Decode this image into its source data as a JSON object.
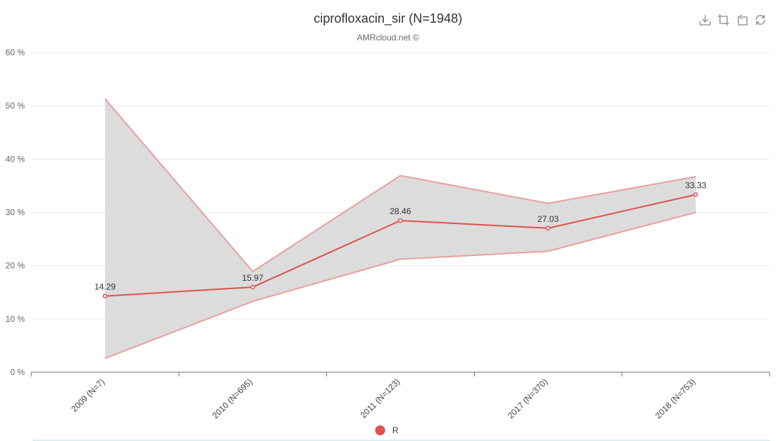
{
  "chart_data": {
    "type": "line",
    "title": "ciprofloxacin_sir (N=1948)",
    "subtitle": "AMRcloud.net ©",
    "categories": [
      "2009 (N=7)",
      "2010 (N=695)",
      "2011 (N=123)",
      "2017 (N=370)",
      "2018 (N=753)"
    ],
    "series": [
      {
        "name": "R",
        "values": [
          14.29,
          15.97,
          28.46,
          27.03,
          33.33
        ],
        "upper": [
          51.3,
          18.9,
          36.9,
          31.7,
          36.7
        ],
        "lower": [
          2.6,
          13.3,
          21.2,
          22.7,
          30.0
        ],
        "color": "#d9534f"
      }
    ],
    "y_ticks": [
      "0 %",
      "10 %",
      "20 %",
      "30 %",
      "40 %",
      "50 %",
      "60 %"
    ],
    "ylim": [
      0,
      60
    ],
    "grid": true,
    "legend_position": "bottom-center",
    "band_color": "#dcdcdc",
    "band_edge_color": "#e8a09c"
  },
  "toolbox": {
    "icons": [
      "download-icon",
      "crop-icon",
      "restore-crop-icon",
      "refresh-icon"
    ]
  }
}
